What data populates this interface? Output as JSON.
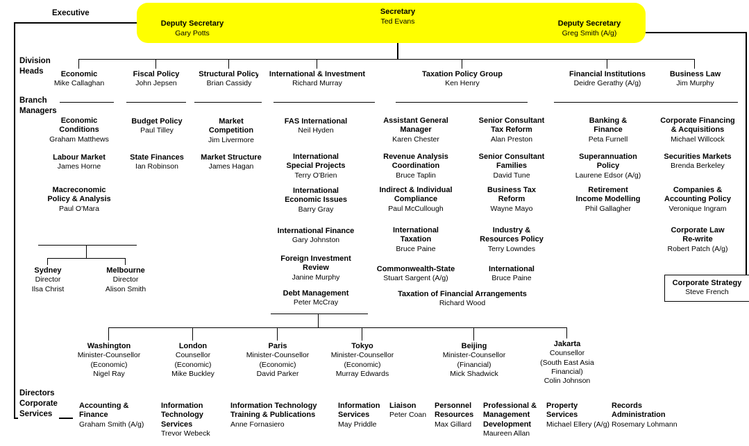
{
  "colors": {
    "highlight": "#ffff00",
    "line": "#000000",
    "background": "#ffffff",
    "text": "#000000"
  },
  "side_labels": {
    "executive": "Executive",
    "division_heads": "Division\nHeads",
    "branch_managers": "Branch\nManagers",
    "directors_corporate_services": "Directors\nCorporate\nServices"
  },
  "executive": {
    "secretary_title": "Secretary",
    "secretary_name": "Ted Evans",
    "deputy_left_title": "Deputy Secretary",
    "deputy_left_name": "Gary Potts",
    "deputy_right_title": "Deputy Secretary",
    "deputy_right_name": "Greg Smith (A/g)"
  },
  "boxes": [
    {
      "id": "div-economic",
      "title": "Economic",
      "sub": [
        "Mike Callaghan"
      ]
    },
    {
      "id": "div-fiscal-policy",
      "title": "Fiscal Policy",
      "sub": [
        "John Jepsen"
      ]
    },
    {
      "id": "div-structural-policy",
      "title": "Structural Policy",
      "sub": [
        "Brian Cassidy"
      ]
    },
    {
      "id": "div-international-investment",
      "title": "International & Investment",
      "sub": [
        "Richard Murray"
      ]
    },
    {
      "id": "div-taxation-policy-group",
      "title": "Taxation Policy Group",
      "sub": [
        "Ken Henry"
      ]
    },
    {
      "id": "div-financial-institutions",
      "title": "Financial Institutions",
      "sub": [
        "Deidre Gerathy (A/g)"
      ]
    },
    {
      "id": "div-business-law",
      "title": "Business Law",
      "sub": [
        "Jim Murphy"
      ]
    },
    {
      "id": "br-economic-conditions",
      "title": "Economic\nConditions",
      "sub": [
        "Graham Matthews"
      ]
    },
    {
      "id": "br-labour-market",
      "title": "Labour Market",
      "sub": [
        "James Horne"
      ]
    },
    {
      "id": "br-macroeconomic-policy-analysis",
      "title": "Macreconomic\nPolicy & Analysis",
      "sub": [
        "Paul O'Mara"
      ]
    },
    {
      "id": "office-sydney",
      "title": "Sydney",
      "sub": [
        "Director",
        "Ilsa Christ"
      ]
    },
    {
      "id": "office-melbourne",
      "title": "Melbourne",
      "sub": [
        "Director",
        "Alison Smith"
      ]
    },
    {
      "id": "br-budget-policy",
      "title": "Budget Policy",
      "sub": [
        "Paul Tilley"
      ]
    },
    {
      "id": "br-state-finances",
      "title": "State Finances",
      "sub": [
        "Ian Robinson"
      ]
    },
    {
      "id": "br-market-competition",
      "title": "Market\nCompetition",
      "sub": [
        "Jim Livermore"
      ]
    },
    {
      "id": "br-market-structure",
      "title": "Market Structure",
      "sub": [
        "James Hagan"
      ]
    },
    {
      "id": "br-fas-international",
      "title": "FAS International",
      "sub": [
        "Neil Hyden"
      ]
    },
    {
      "id": "br-international-special-projects",
      "title": "International\nSpecial Projects",
      "sub": [
        "Terry O'Brien"
      ]
    },
    {
      "id": "br-international-economic-issues",
      "title": "International\nEconomic Issues",
      "sub": [
        "Barry Gray"
      ]
    },
    {
      "id": "br-international-finance",
      "title": "International Finance",
      "sub": [
        "Gary Johnston"
      ]
    },
    {
      "id": "br-foreign-investment-review",
      "title": "Foreign Investment\nReview",
      "sub": [
        "Janine Murphy"
      ]
    },
    {
      "id": "br-debt-management",
      "title": "Debt Management",
      "sub": [
        "Peter McCray"
      ]
    },
    {
      "id": "br-assistant-general-manager",
      "title": "Assistant General\nManager",
      "sub": [
        "Karen Chester"
      ]
    },
    {
      "id": "br-revenue-analysis-coordination",
      "title": "Revenue Analysis\nCoordination",
      "sub": [
        "Bruce Taplin"
      ]
    },
    {
      "id": "br-indirect-individual-compliance",
      "title": "Indirect & Individual\nCompliance",
      "sub": [
        "Paul McCullough"
      ]
    },
    {
      "id": "br-international-taxation",
      "title": "International\nTaxation",
      "sub": [
        "Bruce Paine"
      ]
    },
    {
      "id": "br-commonwealth-state",
      "title": "Commonwealth-State",
      "sub": [
        "Stuart Sargent (A/g)"
      ]
    },
    {
      "id": "br-senior-consultant-tax-reform",
      "title": "Senior Consultant\nTax Reform",
      "sub": [
        "Alan Preston"
      ]
    },
    {
      "id": "br-senior-consultant-families",
      "title": "Senior Consultant\nFamilies",
      "sub": [
        "David Tune"
      ]
    },
    {
      "id": "br-business-tax-reform",
      "title": "Business Tax\nReform",
      "sub": [
        "Wayne Mayo"
      ]
    },
    {
      "id": "br-industry-resources-policy",
      "title": "Industry &\nResources Policy",
      "sub": [
        "Terry Lowndes"
      ]
    },
    {
      "id": "br-international-tax",
      "title": "International",
      "sub": [
        "Bruce Paine"
      ]
    },
    {
      "id": "br-taxation-financial-arrangements",
      "title": "Taxation of Financial Arrangements",
      "sub": [
        "Richard Wood"
      ]
    },
    {
      "id": "br-banking-finance",
      "title": "Banking &\nFinance",
      "sub": [
        "Peta Furnell"
      ]
    },
    {
      "id": "br-superannuation-policy",
      "title": "Superannuation\nPolicy",
      "sub": [
        "Laurene Edsor (A/g)"
      ]
    },
    {
      "id": "br-retirement-income-modelling",
      "title": "Retirement\nIncome Modelling",
      "sub": [
        "Phil Gallagher"
      ]
    },
    {
      "id": "br-corporate-financing-acquisitions",
      "title": "Corporate Financing\n& Acquisitions",
      "sub": [
        "Michael Willcock"
      ]
    },
    {
      "id": "br-securities-markets",
      "title": "Securities Markets",
      "sub": [
        "Brenda Berkeley"
      ]
    },
    {
      "id": "br-companies-accounting-policy",
      "title": "Companies &\nAccounting Policy",
      "sub": [
        "Veronique Ingram"
      ]
    },
    {
      "id": "br-corporate-law-rewrite",
      "title": "Corporate Law\nRe-write",
      "sub": [
        "Robert Patch (A/g)"
      ]
    },
    {
      "id": "box-corporate-strategy",
      "title": "Corporate Strategy",
      "sub": [
        "Steve French"
      ]
    },
    {
      "id": "post-washington",
      "title": "Washington",
      "sub": [
        "Minister-Counsellor",
        "(Economic)",
        "Nigel Ray"
      ]
    },
    {
      "id": "post-london",
      "title": "London",
      "sub": [
        "Counsellor",
        "(Economic)",
        "Mike Buckley"
      ]
    },
    {
      "id": "post-paris",
      "title": "Paris",
      "sub": [
        "Minister-Counsellor",
        "(Economic)",
        "David Parker"
      ]
    },
    {
      "id": "post-tokyo",
      "title": "Tokyo",
      "sub": [
        "Minister-Counsellor",
        "(Economic)",
        "Murray Edwards"
      ]
    },
    {
      "id": "post-beijing",
      "title": "Beijing",
      "sub": [
        "Minister-Counsellor",
        "(Financial)",
        "Mick Shadwick"
      ]
    },
    {
      "id": "post-jakarta",
      "title": "Jakarta",
      "sub": [
        "Counsellor",
        "(South East Asia",
        "Financial)",
        "Colin Johnson"
      ]
    },
    {
      "id": "cs-accounting-finance",
      "title": "Accounting &\nFinance",
      "sub": [
        "Graham Smith (A/g)"
      ]
    },
    {
      "id": "cs-information-technology-services",
      "title": "Information\nTechnology\nServices",
      "sub": [
        "Trevor Webeck"
      ]
    },
    {
      "id": "cs-it-training-publications",
      "title": "Information Technology\nTraining & Publications",
      "sub": [
        "Anne Fornasiero"
      ]
    },
    {
      "id": "cs-information-services",
      "title": "Information\nServices",
      "sub": [
        "May Priddle"
      ]
    },
    {
      "id": "cs-liaison",
      "title": "Liaison",
      "sub": [
        "Peter Coan"
      ]
    },
    {
      "id": "cs-personnel-resources",
      "title": "Personnel\nResources",
      "sub": [
        "Max Gillard"
      ]
    },
    {
      "id": "cs-professional-management-development",
      "title": "Professional &\nManagement\nDevelopment",
      "sub": [
        "Maureen Allan"
      ]
    },
    {
      "id": "cs-property-services",
      "title": "Property\nServices",
      "sub": [
        "Michael Ellery (A/g)"
      ]
    },
    {
      "id": "cs-records-administration",
      "title": "Records\nAdministration",
      "sub": [
        "Rosemary Lohmann"
      ]
    }
  ]
}
